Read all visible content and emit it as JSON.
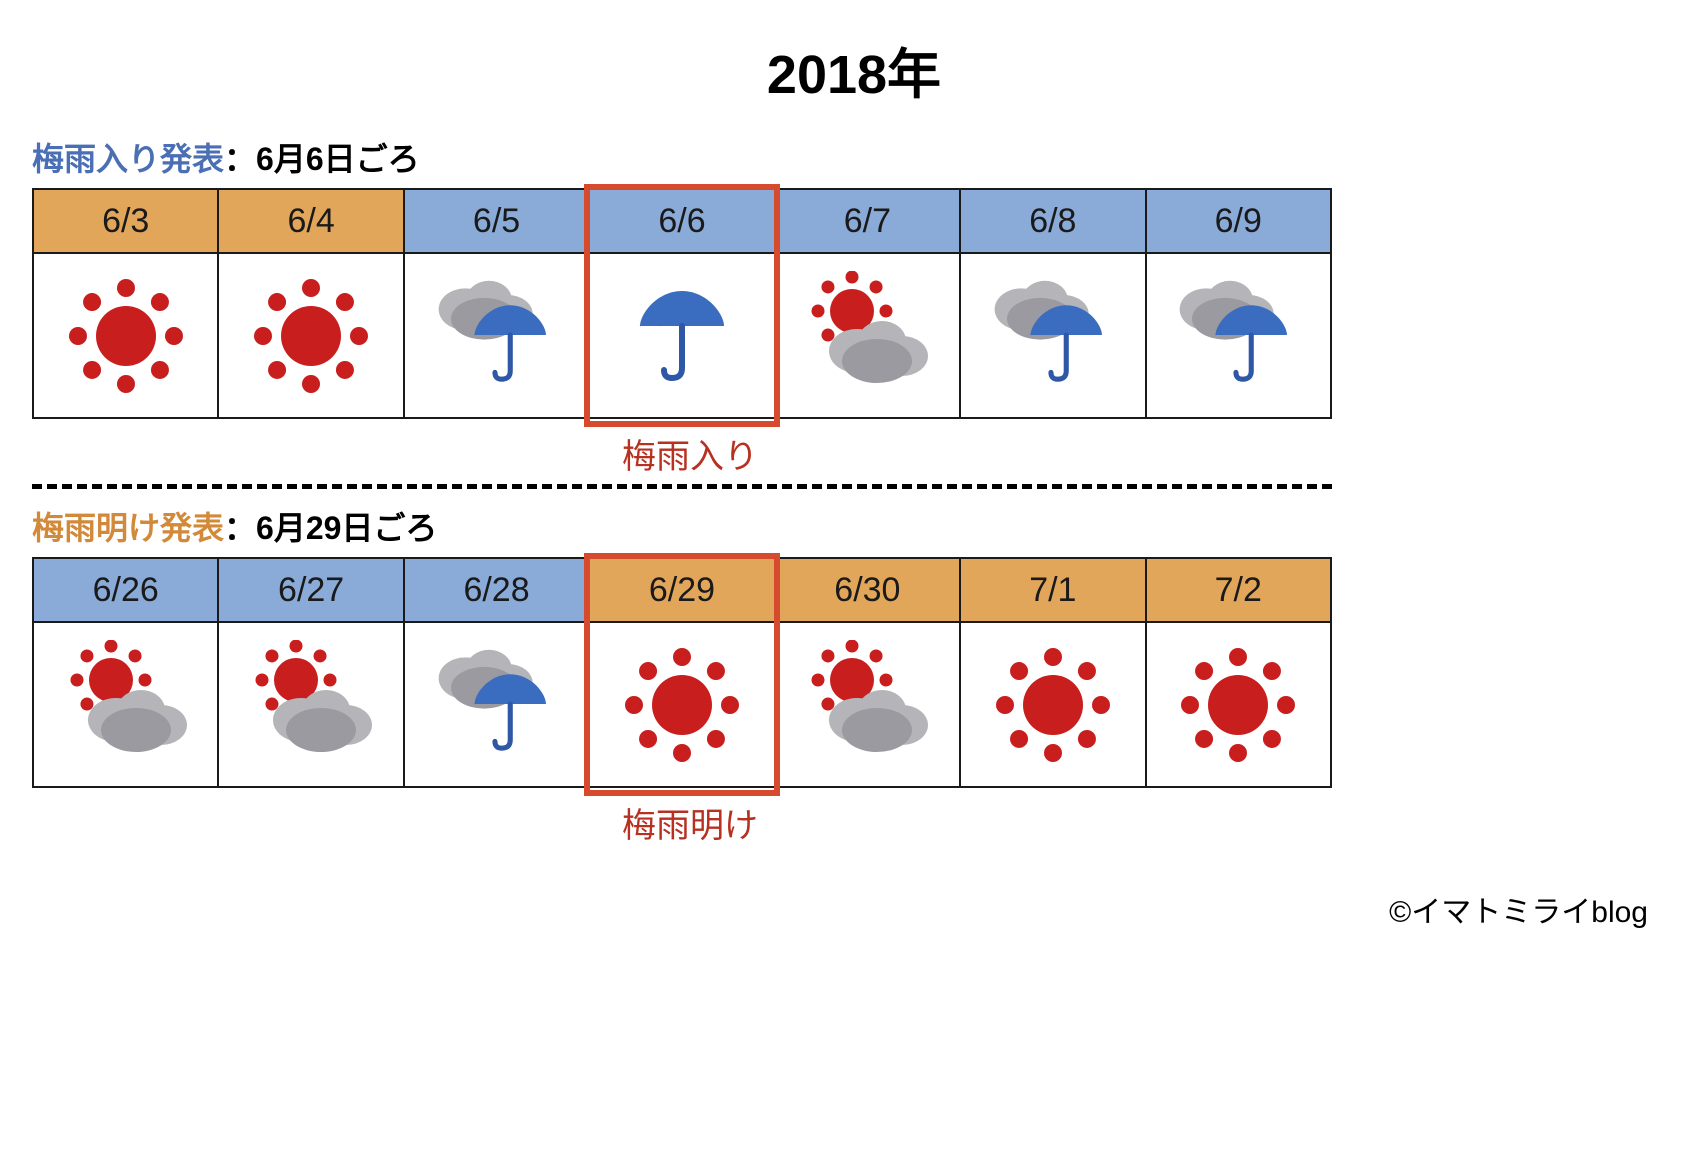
{
  "title": "2018年",
  "colors": {
    "sun": "#c81e1e",
    "cloud_light": "#b5b5b9",
    "cloud_dark": "#9a9aa0",
    "umbrella": "#3a6cc0",
    "umbrella_handle": "#2e58a5",
    "bg_sunny": "#e2a65a",
    "bg_rainy": "#8aaad8",
    "highlight_border": "#d64b2e",
    "announce_start_color": "#4a6fb5",
    "announce_end_color": "#d28a3a",
    "divider_color": "#000000"
  },
  "section_start": {
    "announce_label": "梅雨入り発表",
    "announce_date": "：6月6日ごろ",
    "highlight_index": 3,
    "highlight_label": "梅雨入り",
    "days": [
      {
        "date": "6/3",
        "bg": "sunny",
        "weather": "sun"
      },
      {
        "date": "6/4",
        "bg": "sunny",
        "weather": "sun"
      },
      {
        "date": "6/5",
        "bg": "rainy",
        "weather": "cloud_rain"
      },
      {
        "date": "6/6",
        "bg": "rainy",
        "weather": "rain"
      },
      {
        "date": "6/7",
        "bg": "rainy",
        "weather": "sun_cloud"
      },
      {
        "date": "6/8",
        "bg": "rainy",
        "weather": "cloud_rain"
      },
      {
        "date": "6/9",
        "bg": "rainy",
        "weather": "cloud_rain"
      }
    ]
  },
  "section_end": {
    "announce_label": "梅雨明け発表",
    "announce_date": "：6月29日ごろ",
    "highlight_index": 3,
    "highlight_label": "梅雨明け",
    "days": [
      {
        "date": "6/26",
        "bg": "rainy",
        "weather": "sun_cloud"
      },
      {
        "date": "6/27",
        "bg": "rainy",
        "weather": "sun_cloud"
      },
      {
        "date": "6/28",
        "bg": "rainy",
        "weather": "cloud_rain"
      },
      {
        "date": "6/29",
        "bg": "sunny",
        "weather": "sun"
      },
      {
        "date": "6/30",
        "bg": "sunny",
        "weather": "sun_cloud"
      },
      {
        "date": "7/1",
        "bg": "sunny",
        "weather": "sun"
      },
      {
        "date": "7/2",
        "bg": "sunny",
        "weather": "sun"
      }
    ]
  },
  "credit": "©イマトミライblog"
}
